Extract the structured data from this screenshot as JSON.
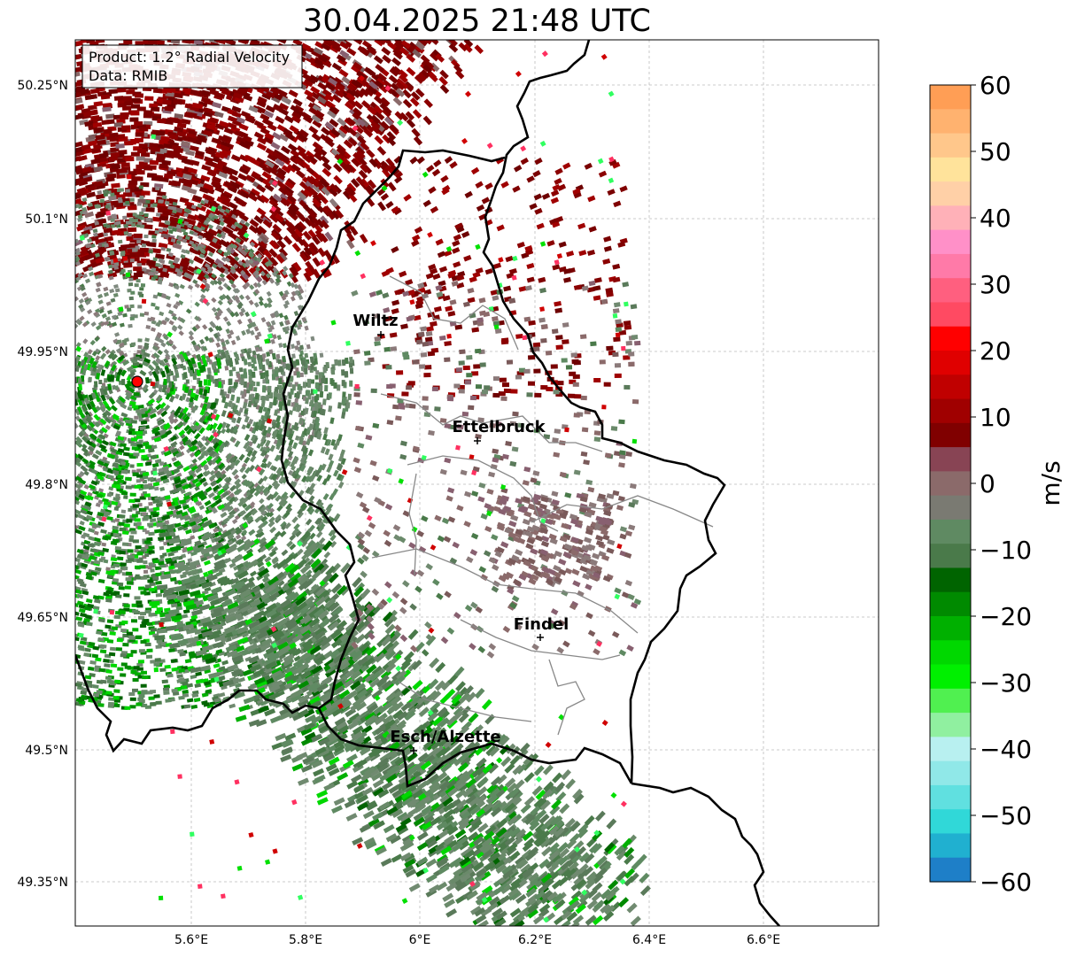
{
  "title": "30.04.2025 21:48 UTC",
  "info_box": {
    "product": "Product: 1.2° Radial Velocity",
    "data": "Data: RMIB"
  },
  "map": {
    "lat_ticks": [
      "50.25°N",
      "50.1°N",
      "49.95°N",
      "49.8°N",
      "49.65°N",
      "49.5°N",
      "49.35°N"
    ],
    "lon_ticks": [
      "5.6°E",
      "5.8°E",
      "6°E",
      "6.2°E",
      "6.4°E",
      "6.6°E"
    ],
    "cities": [
      {
        "name": "Wiltz"
      },
      {
        "name": "Ettelbruck"
      },
      {
        "name": "Findel"
      },
      {
        "name": "Esch/Alzette"
      }
    ],
    "radar_site_color": "#ff0000"
  },
  "colorbar": {
    "label": "m/s",
    "ticks": [
      "60",
      "50",
      "40",
      "30",
      "20",
      "10",
      "0",
      "−10",
      "−20",
      "−30",
      "−40",
      "−50",
      "−60"
    ],
    "range": [
      -60,
      60
    ],
    "colors_top_to_bottom": [
      "#ff9e55",
      "#ffb26f",
      "#ffc78b",
      "#ffe39b",
      "#ffd0a7",
      "#ffb1b8",
      "#ff90c8",
      "#ff7aa8",
      "#ff5f7f",
      "#ff4a62",
      "#ff0000",
      "#e00000",
      "#c00000",
      "#a00000",
      "#800000",
      "#884454",
      "#8b6a6a",
      "#7a7a72",
      "#5f8a62",
      "#4a7a4a",
      "#006400",
      "#008a00",
      "#00b000",
      "#00d800",
      "#00f000",
      "#50f050",
      "#90f0a0",
      "#b8f0f0",
      "#90e8e8",
      "#60e0e0",
      "#30d8d8",
      "#20b0d0",
      "#1e7fc8"
    ]
  }
}
